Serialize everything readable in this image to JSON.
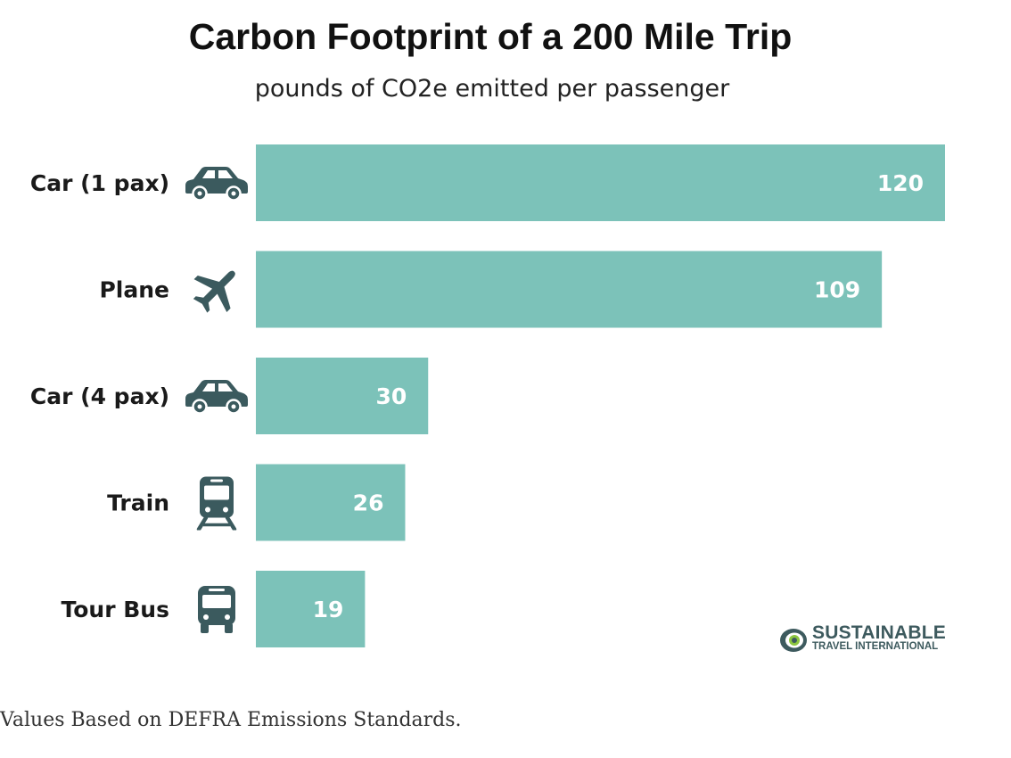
{
  "chart_data": {
    "type": "bar",
    "orientation": "horizontal",
    "title": "Carbon Footprint of a 200 Mile Trip",
    "subtitle": "pounds of CO2e emitted per passenger",
    "categories": [
      "Car (1 pax)",
      "Plane",
      "Car (4 pax)",
      "Train",
      "Tour Bus"
    ],
    "icons": [
      "car-icon",
      "plane-icon",
      "car-icon",
      "train-icon",
      "bus-icon"
    ],
    "values": [
      120,
      109,
      30,
      26,
      19
    ],
    "xlim": [
      0,
      120
    ],
    "grid": false,
    "bar_color": "#7cc2b9",
    "icon_color": "#3b5a5e"
  },
  "logo": {
    "main": "SUSTAINABLE",
    "sub": "TRAVEL INTERNATIONAL",
    "color": "#3d5a5e"
  },
  "footnote": "Values Based on DEFRA Emissions Standards."
}
